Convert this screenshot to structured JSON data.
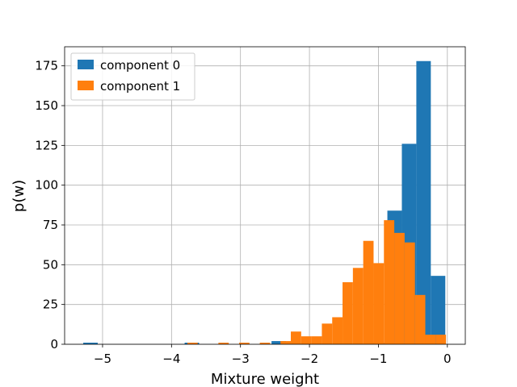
{
  "chart_data": {
    "type": "bar",
    "subtype": "histogram",
    "title": "",
    "xlabel": "Mixture weight",
    "ylabel": "p(w)",
    "xlim": [
      -5.55,
      0.26
    ],
    "ylim": [
      0,
      187
    ],
    "xticks": [
      -5,
      -4,
      -3,
      -2,
      -1,
      0
    ],
    "xtick_labels": [
      "−5",
      "−4",
      "−3",
      "−2",
      "−1",
      "0"
    ],
    "yticks": [
      0,
      25,
      50,
      75,
      100,
      125,
      150,
      175
    ],
    "ytick_labels": [
      "0",
      "25",
      "50",
      "75",
      "100",
      "125",
      "150",
      "175"
    ],
    "grid": true,
    "legend_position": "top-left",
    "series": [
      {
        "name": "component 0",
        "color": "#1f77b4",
        "bin_width": 0.21,
        "bins": [
          {
            "x0": -5.28,
            "x1": -5.07,
            "y": 1
          },
          {
            "x0": -3.81,
            "x1": -3.6,
            "y": 1
          },
          {
            "x0": -2.55,
            "x1": -2.34,
            "y": 2
          },
          {
            "x0": -1.08,
            "x1": -0.87,
            "y": 1
          },
          {
            "x0": -0.87,
            "x1": -0.66,
            "y": 84
          },
          {
            "x0": -0.66,
            "x1": -0.45,
            "y": 126
          },
          {
            "x0": -0.45,
            "x1": -0.24,
            "y": 178
          },
          {
            "x0": -0.24,
            "x1": -0.03,
            "y": 43
          }
        ]
      },
      {
        "name": "component 1",
        "color": "#ff7f0e",
        "bin_width": 0.15,
        "bins": [
          {
            "x0": -3.77,
            "x1": -3.62,
            "y": 1
          },
          {
            "x0": -3.32,
            "x1": -3.17,
            "y": 1
          },
          {
            "x0": -3.02,
            "x1": -2.87,
            "y": 1
          },
          {
            "x0": -2.72,
            "x1": -2.57,
            "y": 1
          },
          {
            "x0": -2.42,
            "x1": -2.27,
            "y": 2
          },
          {
            "x0": -2.27,
            "x1": -2.12,
            "y": 8
          },
          {
            "x0": -2.12,
            "x1": -1.97,
            "y": 5
          },
          {
            "x0": -1.97,
            "x1": -1.82,
            "y": 5
          },
          {
            "x0": -1.82,
            "x1": -1.67,
            "y": 13
          },
          {
            "x0": -1.67,
            "x1": -1.52,
            "y": 17
          },
          {
            "x0": -1.52,
            "x1": -1.37,
            "y": 39
          },
          {
            "x0": -1.37,
            "x1": -1.22,
            "y": 48
          },
          {
            "x0": -1.22,
            "x1": -1.07,
            "y": 65
          },
          {
            "x0": -1.07,
            "x1": -0.92,
            "y": 51
          },
          {
            "x0": -0.92,
            "x1": -0.77,
            "y": 78
          },
          {
            "x0": -0.77,
            "x1": -0.62,
            "y": 70
          },
          {
            "x0": -0.62,
            "x1": -0.47,
            "y": 64
          },
          {
            "x0": -0.47,
            "x1": -0.32,
            "y": 31
          },
          {
            "x0": -0.32,
            "x1": -0.17,
            "y": 6
          },
          {
            "x0": -0.17,
            "x1": -0.02,
            "y": 6
          }
        ]
      }
    ]
  }
}
